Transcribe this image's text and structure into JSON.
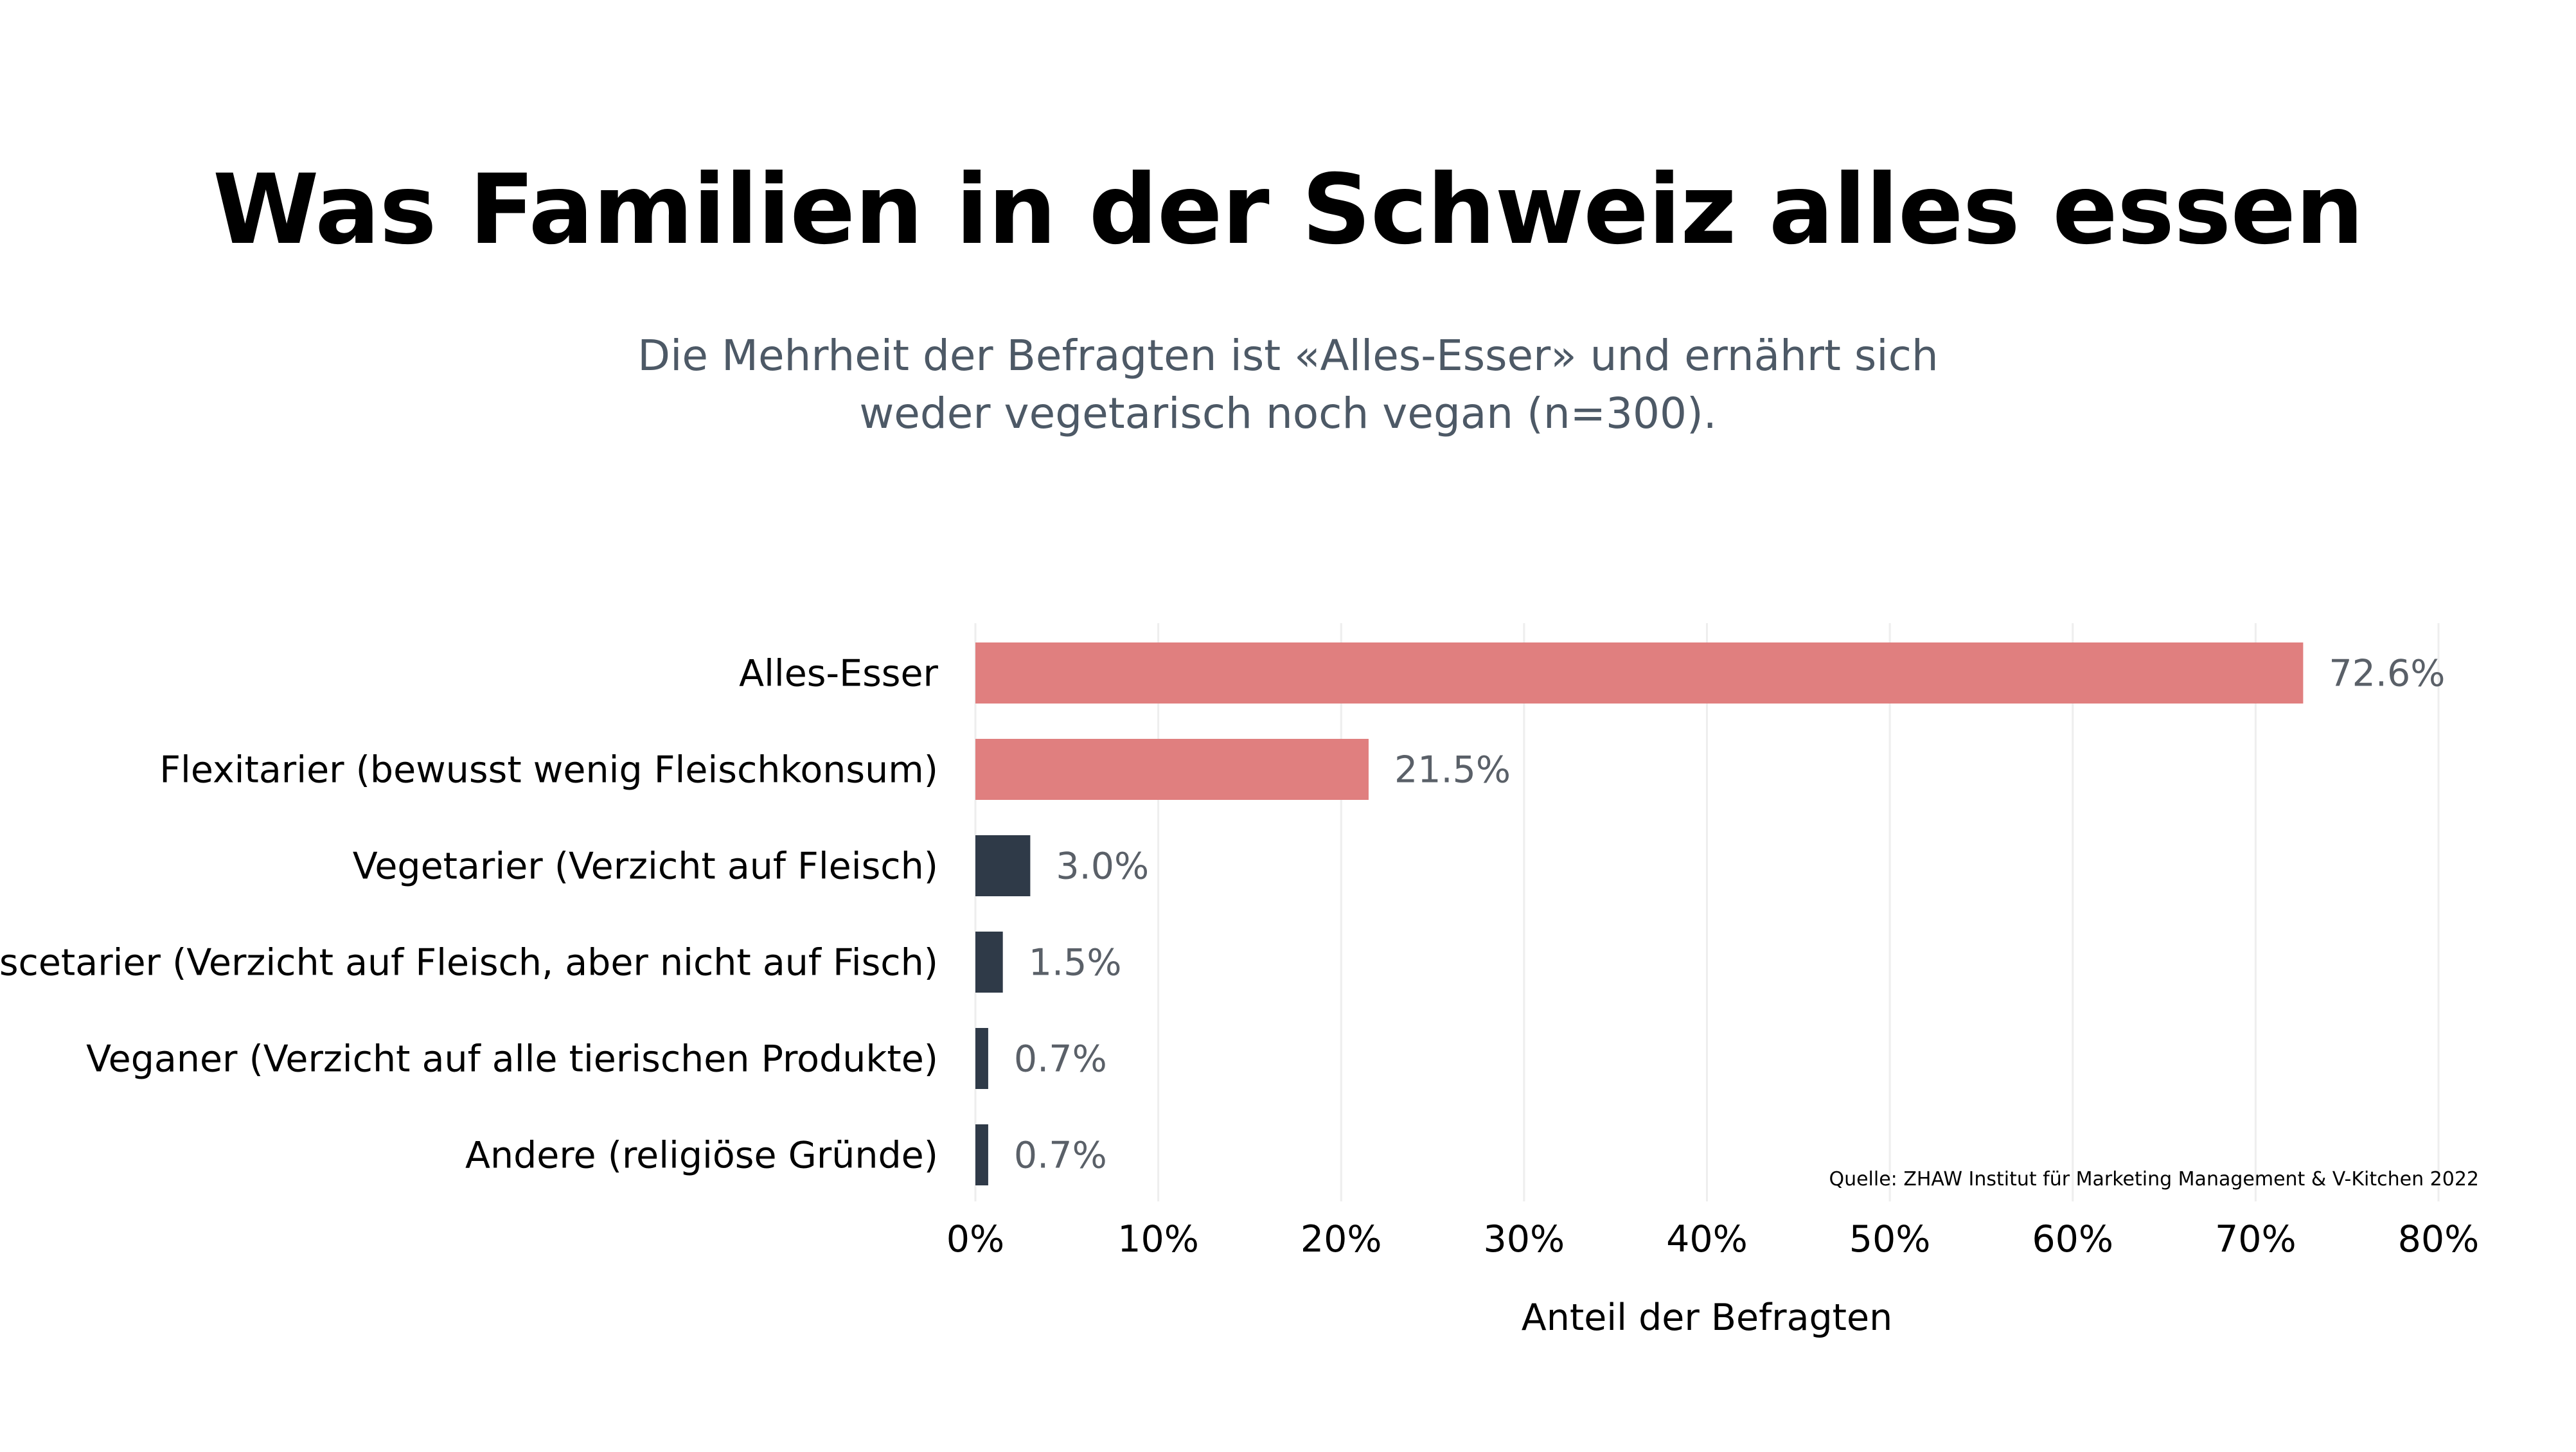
{
  "header": {
    "title": "Was Familien in der Schweiz alles essen",
    "subtitle_line1": "Die Mehrheit der Befragten ist «Alles-Esser» und ernährt sich",
    "subtitle_line2": "weder vegetarisch noch vegan (n=300)."
  },
  "source": "Quelle: ZHAW Institut für Marketing Management & V-Kitchen 2022",
  "colors": {
    "highlight": "#e07f7f",
    "default": "#2f3a48",
    "grid": "#eeeeee"
  },
  "chart_data": {
    "type": "bar",
    "orientation": "horizontal",
    "categories": [
      "Alles-Esser",
      "Flexitarier (bewusst wenig Fleischkonsum)",
      "Vegetarier (Verzicht auf Fleisch)",
      "Pescetarier (Verzicht auf Fleisch, aber nicht auf Fisch)",
      "Veganer (Verzicht auf alle tierischen Produkte)",
      "Andere (religiöse Gründe)"
    ],
    "values": [
      72.6,
      21.5,
      3.0,
      1.5,
      0.7,
      0.7
    ],
    "value_labels": [
      "72.6%",
      "21.5%",
      "3.0%",
      "1.5%",
      "0.7%",
      "0.7%"
    ],
    "highlighted": [
      true,
      true,
      false,
      false,
      false,
      false
    ],
    "xlabel": "Anteil der Befragten",
    "ylabel": "",
    "xlim": [
      0,
      80
    ],
    "ticks": [
      0,
      10,
      20,
      30,
      40,
      50,
      60,
      70,
      80
    ],
    "tick_labels": [
      "0%",
      "10%",
      "20%",
      "30%",
      "40%",
      "50%",
      "60%",
      "70%",
      "80%"
    ],
    "grid": true,
    "legend": "none"
  }
}
